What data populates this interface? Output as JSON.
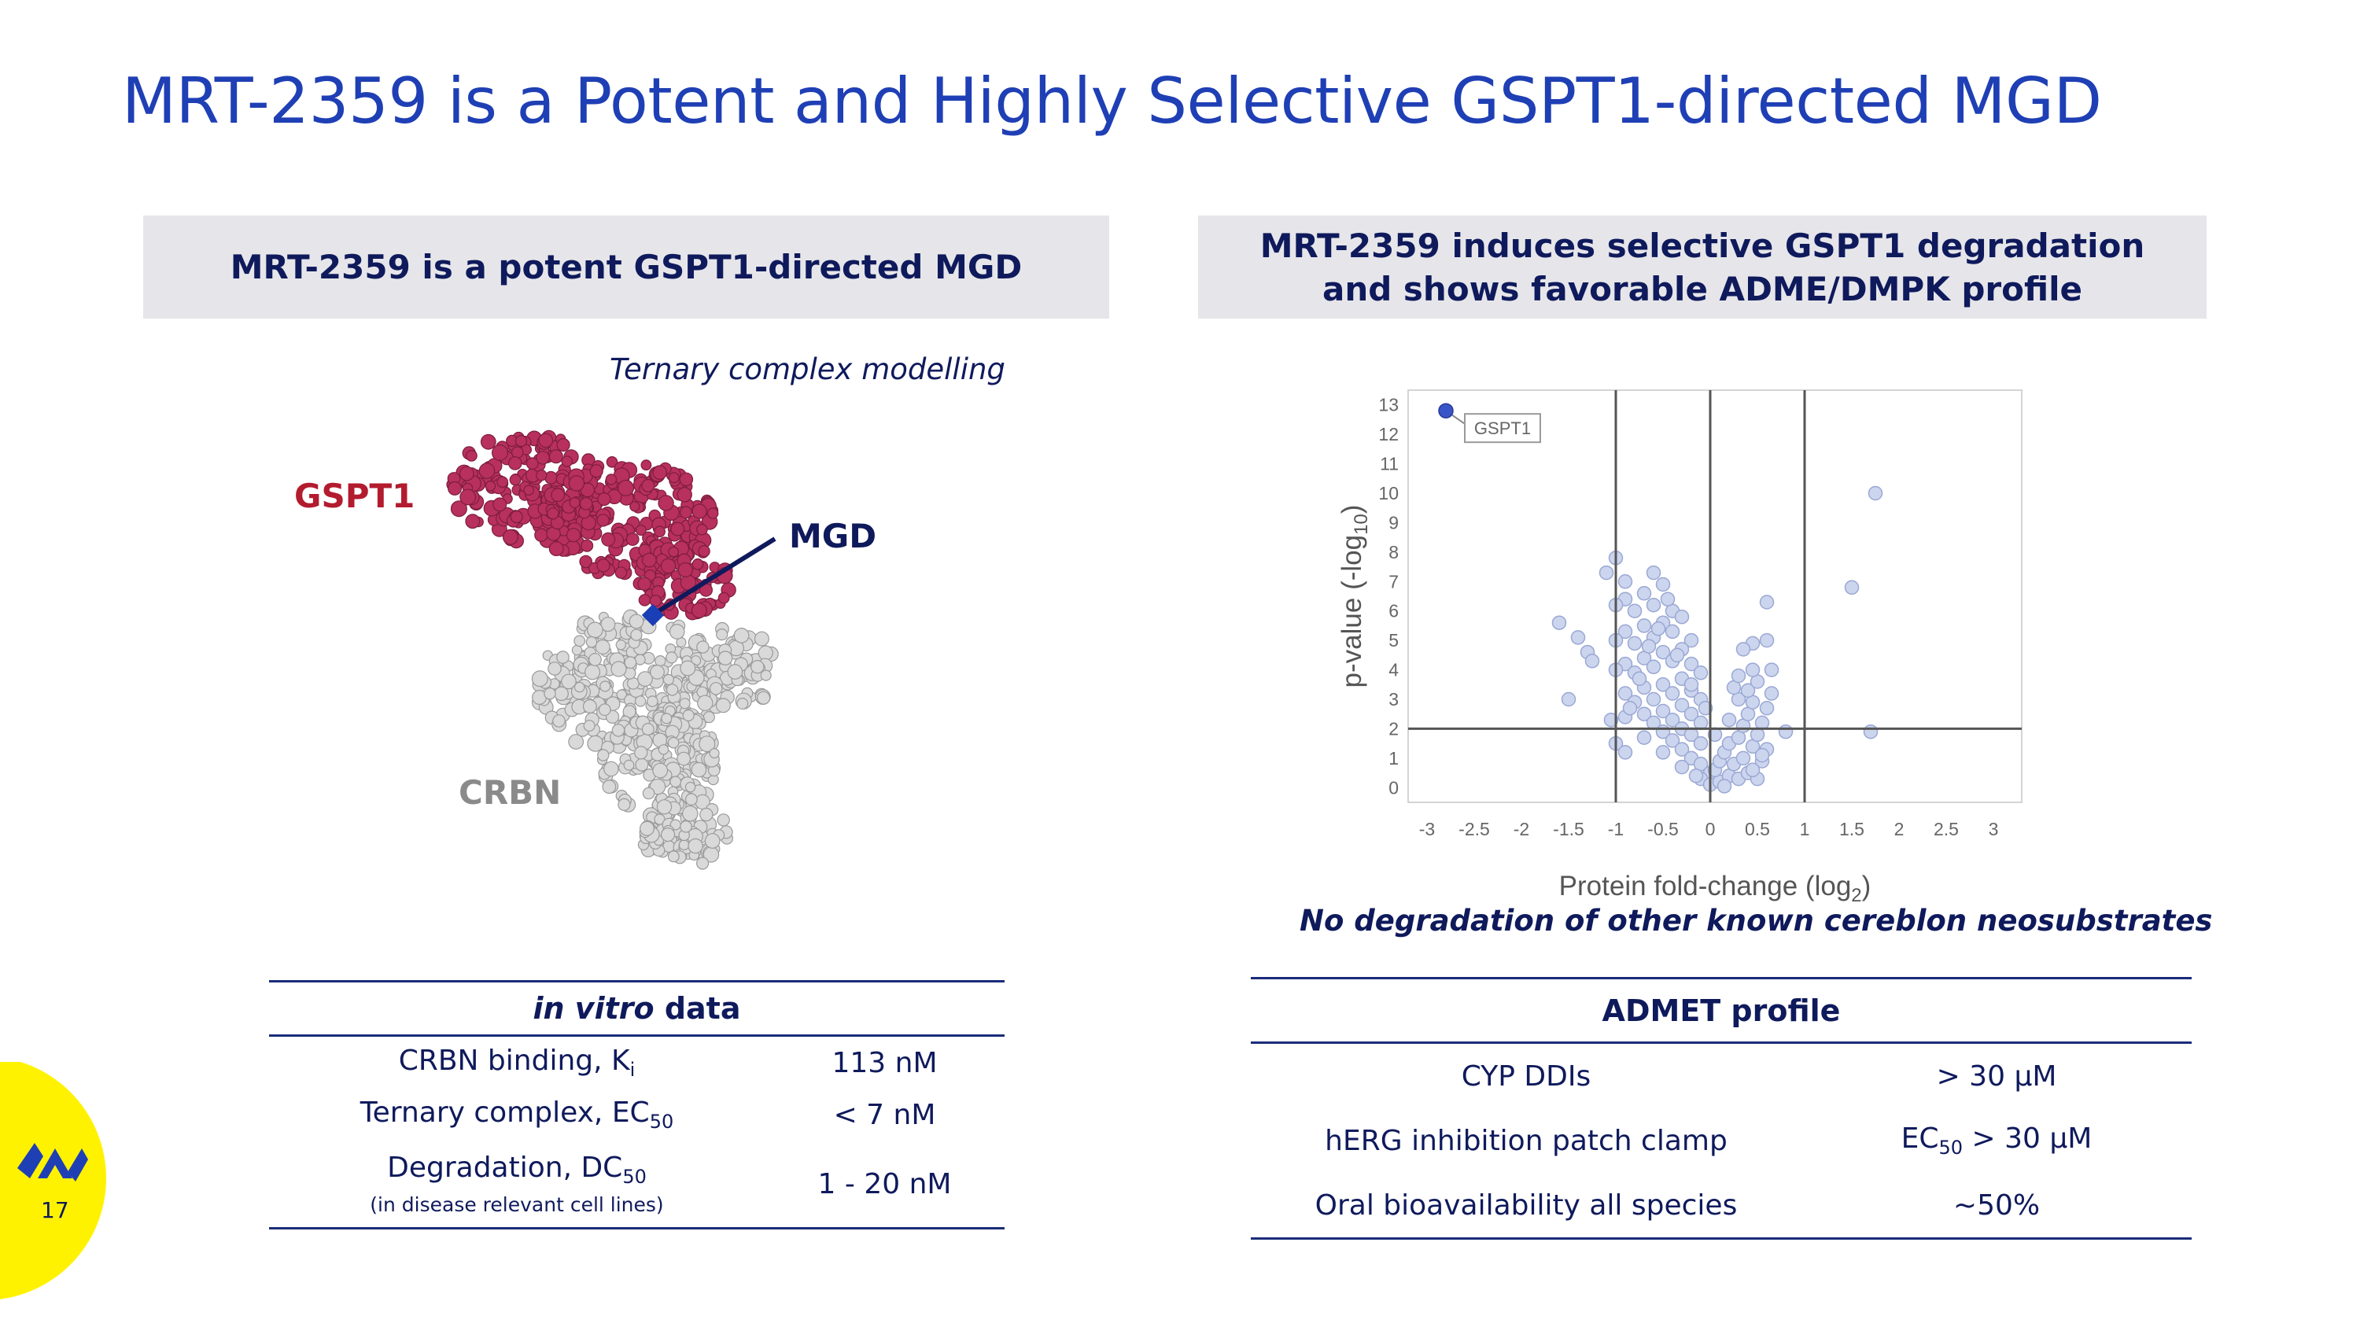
{
  "slide_title": "MRT-2359 is a Potent and Highly Selective GSPT1-directed MGD",
  "left_panel": {
    "header": "MRT-2359 is a potent GSPT1-directed MGD",
    "caption": "Ternary complex modelling",
    "protein_labels": {
      "gspt1": "GSPT1",
      "mgd": "MGD",
      "crbn": "CRBN"
    },
    "colors": {
      "gspt1": "#b8305d",
      "crbn": "#d9d9d9",
      "mgd": "#1a3eb5"
    }
  },
  "invitro_table": {
    "header_italic": "in vitro",
    "header_rest": " data",
    "rows": [
      {
        "label": "CRBN binding, K",
        "sub": "i",
        "value": "113 nM"
      },
      {
        "label": "Ternary complex, EC",
        "sub": "50",
        "value": "< 7 nM"
      },
      {
        "label": "Degradation, DC",
        "sub": "50",
        "note": "(in disease relevant cell lines)",
        "value": "1 - 20 nM"
      }
    ]
  },
  "right_panel": {
    "header_line1": "MRT-2359 induces selective GSPT1 degradation",
    "header_line2": "and shows favorable ADME/DMPK profile",
    "caption": "No degradation of other known cereblon neosubstrates"
  },
  "chart_data": {
    "type": "scatter",
    "title": "",
    "xlabel_main": "Protein fold-change (log",
    "xlabel_sub": "2",
    "xlabel_end": ")",
    "ylabel_main": "p-value (-log",
    "ylabel_sub": "10",
    "ylabel_end": ")",
    "xlim": [
      -3.2,
      3.3
    ],
    "ylim": [
      -0.5,
      13.5
    ],
    "x_ticks": [
      -3,
      -2.5,
      -2,
      -1.5,
      -1,
      -0.5,
      0,
      0.5,
      1,
      1.5,
      2,
      2.5,
      3
    ],
    "x_tick_labels": [
      "-3",
      "-2.5",
      "-2",
      "-1.5",
      "-1",
      "-0.5",
      "0",
      "0.5",
      "1",
      "1.5",
      "2",
      "2.5",
      "3"
    ],
    "y_ticks": [
      0,
      1,
      2,
      3,
      4,
      5,
      6,
      7,
      8,
      9,
      10,
      11,
      12,
      13
    ],
    "y_tick_labels": [
      "0",
      "1",
      "2",
      "3",
      "4",
      "5",
      "6",
      "7",
      "8",
      "9",
      "10",
      "11",
      "12",
      "13"
    ],
    "vertical_lines": [
      -1,
      0,
      1
    ],
    "horizontal_lines": [
      2
    ],
    "highlight": {
      "name": "GSPT1",
      "x": -2.8,
      "y": 12.8,
      "color": "#3a55c8"
    },
    "point_color": "#ccd5ee",
    "point_edge": "#9aa8d4",
    "points": [
      [
        -1.0,
        7.8
      ],
      [
        -1.1,
        7.3
      ],
      [
        -0.9,
        7.0
      ],
      [
        -0.6,
        7.3
      ],
      [
        -0.5,
        6.9
      ],
      [
        -0.7,
        6.6
      ],
      [
        -0.9,
        6.4
      ],
      [
        -1.0,
        6.2
      ],
      [
        -0.8,
        6.0
      ],
      [
        -0.6,
        6.2
      ],
      [
        -0.4,
        6.0
      ],
      [
        -0.3,
        5.8
      ],
      [
        -0.5,
        5.6
      ],
      [
        -0.7,
        5.5
      ],
      [
        -0.9,
        5.3
      ],
      [
        -1.0,
        5.0
      ],
      [
        -0.8,
        4.9
      ],
      [
        -0.6,
        5.1
      ],
      [
        -0.4,
        5.3
      ],
      [
        -0.2,
        5.0
      ],
      [
        -0.3,
        4.7
      ],
      [
        -0.5,
        4.6
      ],
      [
        -0.7,
        4.4
      ],
      [
        -0.9,
        4.2
      ],
      [
        -1.0,
        4.0
      ],
      [
        -0.8,
        3.9
      ],
      [
        -0.6,
        4.1
      ],
      [
        -0.4,
        4.3
      ],
      [
        -0.2,
        4.2
      ],
      [
        -0.1,
        3.9
      ],
      [
        -0.3,
        3.7
      ],
      [
        -0.5,
        3.5
      ],
      [
        -0.7,
        3.4
      ],
      [
        -0.9,
        3.2
      ],
      [
        -0.8,
        2.9
      ],
      [
        -0.6,
        3.0
      ],
      [
        -0.4,
        3.2
      ],
      [
        -0.2,
        3.3
      ],
      [
        -0.1,
        3.0
      ],
      [
        -0.3,
        2.8
      ],
      [
        -0.5,
        2.6
      ],
      [
        -0.7,
        2.5
      ],
      [
        -0.9,
        2.4
      ],
      [
        -0.6,
        2.2
      ],
      [
        -0.4,
        2.3
      ],
      [
        -0.2,
        2.5
      ],
      [
        -0.1,
        2.2
      ],
      [
        -0.3,
        2.0
      ],
      [
        -0.5,
        1.9
      ],
      [
        -0.7,
        1.7
      ],
      [
        -0.4,
        1.6
      ],
      [
        -0.2,
        1.8
      ],
      [
        -0.1,
        1.5
      ],
      [
        -0.3,
        1.3
      ],
      [
        -0.5,
        1.2
      ],
      [
        -0.2,
        1.0
      ],
      [
        -0.1,
        0.8
      ],
      [
        -0.3,
        0.7
      ],
      [
        0.0,
        0.5
      ],
      [
        -0.1,
        0.3
      ],
      [
        0.0,
        0.1
      ],
      [
        0.1,
        0.2
      ],
      [
        0.05,
        0.6
      ],
      [
        0.1,
        0.9
      ],
      [
        0.2,
        0.4
      ],
      [
        0.3,
        0.3
      ],
      [
        0.15,
        1.2
      ],
      [
        0.25,
        0.8
      ],
      [
        0.35,
        1.0
      ],
      [
        0.4,
        0.5
      ],
      [
        0.5,
        0.3
      ],
      [
        0.2,
        1.5
      ],
      [
        0.3,
        1.7
      ],
      [
        0.45,
        1.4
      ],
      [
        0.55,
        0.9
      ],
      [
        0.6,
        1.3
      ],
      [
        0.5,
        1.8
      ],
      [
        0.35,
        2.1
      ],
      [
        0.2,
        2.3
      ],
      [
        0.4,
        2.5
      ],
      [
        0.55,
        2.2
      ],
      [
        0.6,
        2.7
      ],
      [
        0.45,
        2.9
      ],
      [
        0.3,
        3.0
      ],
      [
        0.25,
        3.4
      ],
      [
        0.4,
        3.3
      ],
      [
        0.5,
        3.6
      ],
      [
        0.3,
        3.8
      ],
      [
        0.45,
        4.0
      ],
      [
        0.65,
        3.2
      ],
      [
        0.65,
        4.0
      ],
      [
        -1.3,
        4.6
      ],
      [
        -1.4,
        5.1
      ],
      [
        -1.6,
        5.6
      ],
      [
        -1.25,
        4.3
      ],
      [
        -1.5,
        3.0
      ],
      [
        -1.05,
        2.3
      ],
      [
        -1.0,
        1.5
      ],
      [
        -0.9,
        1.2
      ],
      [
        -0.85,
        2.7
      ],
      [
        -0.75,
        3.7
      ],
      [
        -0.65,
        4.8
      ],
      [
        -0.55,
        5.4
      ],
      [
        -0.45,
        6.4
      ],
      [
        0.45,
        4.9
      ],
      [
        0.35,
        4.7
      ],
      [
        0.6,
        5.0
      ],
      [
        0.6,
        6.3
      ],
      [
        0.8,
        1.9
      ],
      [
        0.55,
        1.1
      ],
      [
        0.45,
        0.6
      ],
      [
        0.15,
        0.05
      ],
      [
        1.5,
        6.8
      ],
      [
        1.75,
        10.0
      ],
      [
        1.7,
        1.9
      ],
      [
        -0.15,
        0.4
      ],
      [
        0.05,
        1.8
      ],
      [
        -0.05,
        2.7
      ],
      [
        -0.2,
        3.5
      ],
      [
        -0.35,
        4.5
      ]
    ]
  },
  "admet_table": {
    "header": "ADMET profile",
    "rows": [
      {
        "label": "CYP DDIs",
        "value_pre": "> 30 µM",
        "value_sub": "",
        "value_post": ""
      },
      {
        "label": "hERG inhibition patch clamp",
        "value_pre": "EC",
        "value_sub": "50",
        "value_post": " > 30 µM"
      },
      {
        "label": "Oral bioavailability all species",
        "value_pre": "~50%",
        "value_sub": "",
        "value_post": ""
      }
    ]
  },
  "footer": {
    "page_number": "17",
    "badge_color": "#fff200",
    "logo_color": "#1f3fb5",
    "logo_icon": "company-logo-icon"
  }
}
